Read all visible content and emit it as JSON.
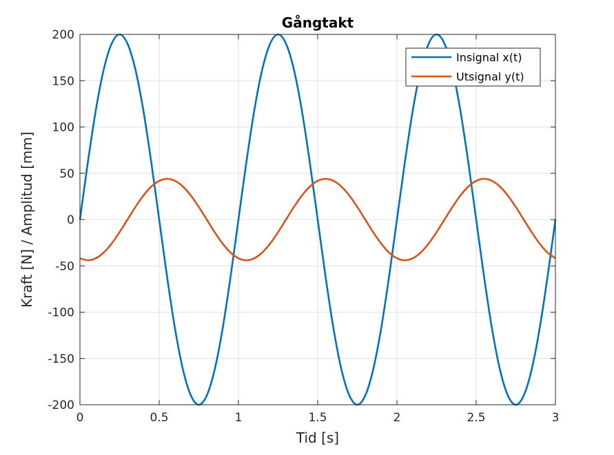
{
  "chart_data": {
    "type": "line",
    "title": "Gångtakt",
    "xlabel": "Tid [s]",
    "ylabel": "Kraft [N] / Amplitud [mm]",
    "xlim": [
      0,
      3
    ],
    "ylim": [
      -200,
      200
    ],
    "xticks": [
      0,
      0.5,
      1,
      1.5,
      2,
      2.5,
      3
    ],
    "xtick_labels": [
      "0",
      "0.5",
      "1",
      "1.5",
      "2",
      "2.5",
      "3"
    ],
    "yticks": [
      -200,
      -150,
      -100,
      -50,
      0,
      50,
      100,
      150,
      200
    ],
    "ytick_labels": [
      "-200",
      "-150",
      "-100",
      "-50",
      "0",
      "50",
      "100",
      "150",
      "200"
    ],
    "grid": true,
    "legend_position": "top-right",
    "series": [
      {
        "name": "Insignal x(t)",
        "color": "#0072BD",
        "x": [
          0,
          0.05,
          0.1,
          0.15,
          0.2,
          0.25,
          0.3,
          0.35,
          0.4,
          0.45,
          0.5,
          0.55,
          0.6,
          0.65,
          0.7,
          0.75,
          0.8,
          0.85,
          0.9,
          0.95,
          1,
          1.05,
          1.1,
          1.15,
          1.2,
          1.25,
          1.3,
          1.35,
          1.4,
          1.45,
          1.5,
          1.55,
          1.6,
          1.65,
          1.7,
          1.75,
          1.8,
          1.85,
          1.9,
          1.95,
          2,
          2.05,
          2.1,
          2.15,
          2.2,
          2.25,
          2.3,
          2.35,
          2.4,
          2.45,
          2.5,
          2.55,
          2.6,
          2.65,
          2.7,
          2.75,
          2.8,
          2.85,
          2.9,
          2.95,
          3
        ],
        "y": [
          0,
          62,
          118,
          162,
          190,
          200,
          190,
          162,
          118,
          62,
          0,
          -62,
          -118,
          -162,
          -190,
          -200,
          -190,
          -162,
          -118,
          -62,
          0,
          62,
          118,
          162,
          190,
          200,
          190,
          162,
          118,
          62,
          0,
          -62,
          -118,
          -162,
          -190,
          -200,
          -190,
          -162,
          -118,
          -62,
          0,
          62,
          118,
          162,
          190,
          200,
          190,
          162,
          118,
          62,
          0,
          -62,
          -118,
          -162,
          -190,
          -200,
          -190,
          -162,
          -118,
          -62,
          0
        ]
      },
      {
        "name": "Utsignal y(t)",
        "color": "#D95319",
        "x": [
          0,
          0.05,
          0.1,
          0.15,
          0.2,
          0.25,
          0.3,
          0.35,
          0.4,
          0.45,
          0.5,
          0.55,
          0.6,
          0.65,
          0.7,
          0.75,
          0.8,
          0.85,
          0.9,
          0.95,
          1,
          1.05,
          1.1,
          1.15,
          1.2,
          1.25,
          1.3,
          1.35,
          1.4,
          1.45,
          1.5,
          1.55,
          1.6,
          1.65,
          1.7,
          1.75,
          1.8,
          1.85,
          1.9,
          1.95,
          2,
          2.05,
          2.1,
          2.15,
          2.2,
          2.25,
          2.3,
          2.35,
          2.4,
          2.45,
          2.5,
          2.55,
          2.6,
          2.65,
          2.7,
          2.75,
          2.8,
          2.85,
          2.9,
          2.95,
          3
        ],
        "y": [
          -41.8,
          -44,
          -41.8,
          -35.6,
          -25.9,
          -13.6,
          0,
          13.6,
          25.9,
          35.6,
          41.8,
          44,
          41.8,
          35.6,
          25.9,
          13.6,
          0,
          -13.6,
          -25.9,
          -35.6,
          -41.8,
          -44,
          -41.8,
          -35.6,
          -25.9,
          -13.6,
          0,
          13.6,
          25.9,
          35.6,
          41.8,
          44,
          41.8,
          35.6,
          25.9,
          13.6,
          0,
          -13.6,
          -25.9,
          -35.6,
          -41.8,
          -44,
          -41.8,
          -35.6,
          -25.9,
          -13.6,
          0,
          13.6,
          25.9,
          35.6,
          41.8,
          44,
          41.8,
          35.6,
          25.9,
          13.6,
          0,
          -13.6,
          -25.9,
          -35.6,
          -41.8
        ]
      }
    ]
  }
}
